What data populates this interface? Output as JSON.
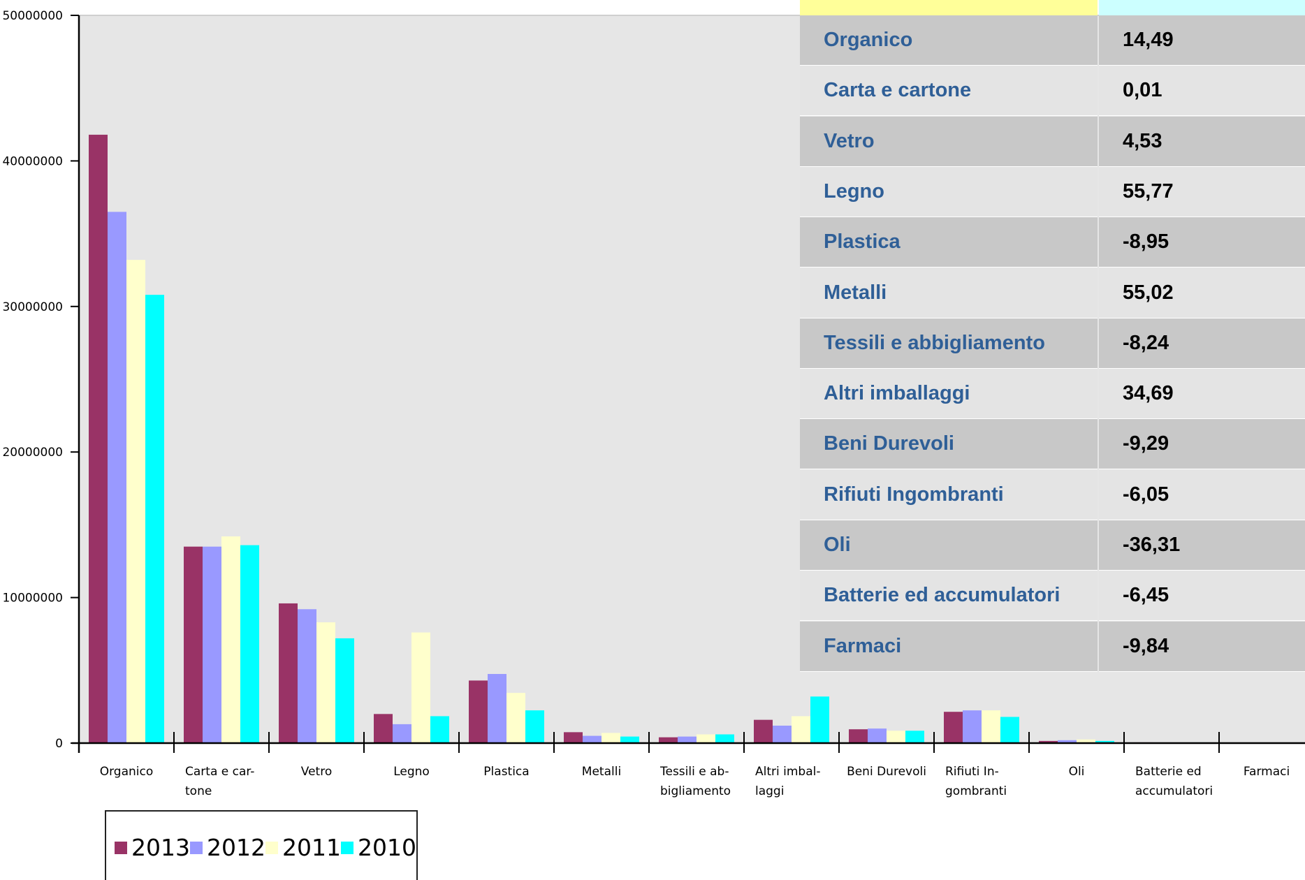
{
  "colors": {
    "plot_bg": "#e6e6e6",
    "series_2013": "#993366",
    "series_2012": "#9999ff",
    "series_2011": "#ffffcc",
    "series_2010": "#00ffff",
    "table_row_dark": "#c8c8c8",
    "table_row_light": "#e4e4e4",
    "table_text_blue": "#2f5f97",
    "table_header_yellow": "#ffff99",
    "table_header_cyan": "#ccffff"
  },
  "chart_data": {
    "type": "bar",
    "categories": [
      "Organico",
      "Carta e car-tone",
      "Vetro",
      "Legno",
      "Plastica",
      "Metalli",
      "Tessili e ab-bigliamento",
      "Altri imbal-laggi",
      "Beni Durevoli",
      "Rifiuti In-gombranti",
      "Oli",
      "Batterie ed accumulatori",
      "Farmaci"
    ],
    "category_lines": [
      [
        "Organico"
      ],
      [
        "Carta e car-",
        "tone"
      ],
      [
        "Vetro"
      ],
      [
        "Legno"
      ],
      [
        "Plastica"
      ],
      [
        "Metalli"
      ],
      [
        "Tessili e ab-",
        "bigliamento"
      ],
      [
        "Altri imbal-",
        "laggi"
      ],
      [
        "Beni Durevoli"
      ],
      [
        "Rifiuti In-",
        "gombranti"
      ],
      [
        "Oli"
      ],
      [
        "Batterie ed",
        "accumulatori"
      ],
      [
        "Farmaci"
      ]
    ],
    "series": [
      {
        "name": "2013",
        "values": [
          41800000,
          13500000,
          9600000,
          2000000,
          4300000,
          750000,
          400000,
          1600000,
          950000,
          2150000,
          150000,
          50000,
          0
        ]
      },
      {
        "name": "2012",
        "values": [
          36500000,
          13500000,
          9200000,
          1300000,
          4750000,
          500000,
          450000,
          1200000,
          1000000,
          2250000,
          200000,
          50000,
          0
        ]
      },
      {
        "name": "2011",
        "values": [
          33200000,
          14200000,
          8300000,
          7600000,
          3450000,
          700000,
          600000,
          1850000,
          850000,
          2250000,
          250000,
          50000,
          0
        ]
      },
      {
        "name": "2010",
        "values": [
          30800000,
          13600000,
          7200000,
          1850000,
          2250000,
          450000,
          600000,
          3200000,
          850000,
          1800000,
          150000,
          50000,
          0
        ]
      }
    ],
    "yticks": [
      "0",
      "10000000",
      "20000000",
      "30000000",
      "40000000",
      "50000000"
    ],
    "ylim": [
      0,
      50000000
    ],
    "xlabel": "",
    "ylabel": "",
    "legend": [
      "2013",
      "2012",
      "2011",
      "2010"
    ],
    "legend_position": "bottom-left"
  },
  "table": {
    "rows": [
      {
        "name": "Organico",
        "value": "14,49"
      },
      {
        "name": "Carta e cartone",
        "value": "0,01"
      },
      {
        "name": "Vetro",
        "value": "4,53"
      },
      {
        "name": "Legno",
        "value": "55,77"
      },
      {
        "name": "Plastica",
        "value": "-8,95"
      },
      {
        "name": "Metalli",
        "value": "55,02"
      },
      {
        "name": "Tessili e abbigliamento",
        "value": "-8,24"
      },
      {
        "name": "Altri imballaggi",
        "value": "34,69"
      },
      {
        "name": "Beni Durevoli",
        "value": "-9,29"
      },
      {
        "name": "Rifiuti Ingombranti",
        "value": "-6,05"
      },
      {
        "name": "Oli",
        "value": "-36,31"
      },
      {
        "name": "Batterie ed accumulatori",
        "value": "-6,45"
      },
      {
        "name": "Farmaci",
        "value": "-9,84"
      }
    ]
  }
}
